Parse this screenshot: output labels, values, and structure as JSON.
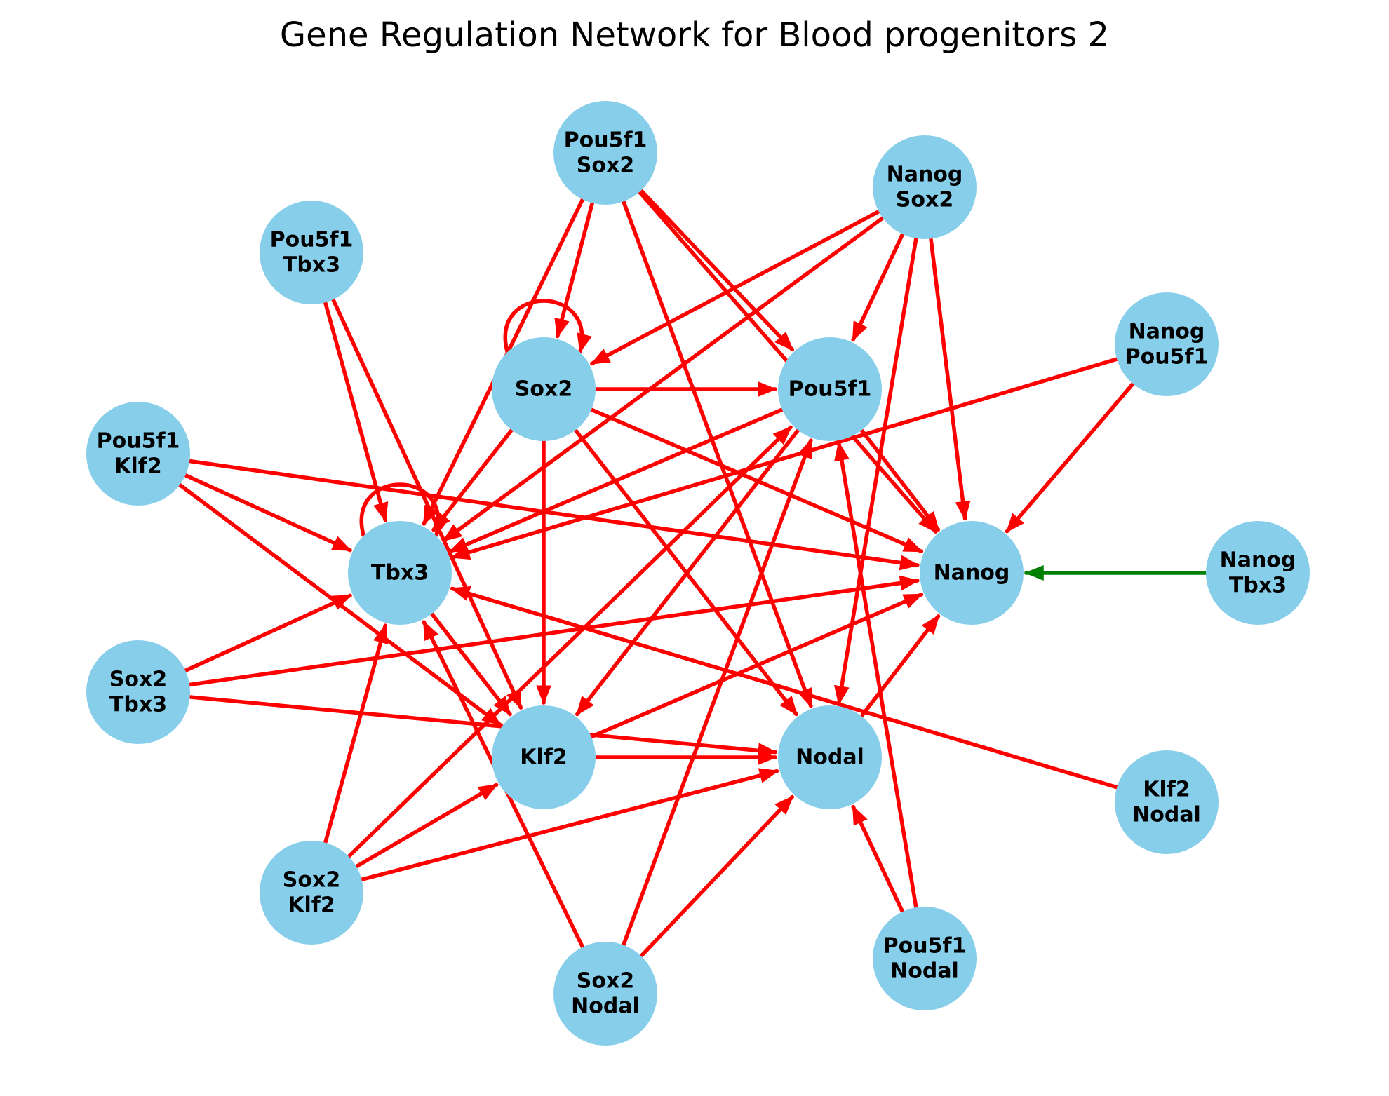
{
  "title": "Gene Regulation Network for Blood progenitors 2",
  "colors": {
    "node_fill": "#87CEEB",
    "activation_edge": "#FF0000",
    "inhibition_edge": "#008000",
    "background": "#FFFFFF"
  },
  "nodes": [
    {
      "id": "Sox2",
      "lines": [
        "Sox2"
      ]
    },
    {
      "id": "Pou5f1",
      "lines": [
        "Pou5f1"
      ]
    },
    {
      "id": "Tbx3",
      "lines": [
        "Tbx3"
      ]
    },
    {
      "id": "Nanog",
      "lines": [
        "Nanog"
      ]
    },
    {
      "id": "Klf2",
      "lines": [
        "Klf2"
      ]
    },
    {
      "id": "Nodal",
      "lines": [
        "Nodal"
      ]
    },
    {
      "id": "Pou5f1_Sox2",
      "lines": [
        "Pou5f1",
        "Sox2"
      ]
    },
    {
      "id": "Nanog_Sox2",
      "lines": [
        "Nanog",
        "Sox2"
      ]
    },
    {
      "id": "Pou5f1_Tbx3",
      "lines": [
        "Pou5f1",
        "Tbx3"
      ]
    },
    {
      "id": "Nanog_Pou5f1",
      "lines": [
        "Nanog",
        "Pou5f1"
      ]
    },
    {
      "id": "Pou5f1_Klf2",
      "lines": [
        "Pou5f1",
        "Klf2"
      ]
    },
    {
      "id": "Nanog_Tbx3",
      "lines": [
        "Nanog",
        "Tbx3"
      ]
    },
    {
      "id": "Sox2_Tbx3",
      "lines": [
        "Sox2",
        "Tbx3"
      ]
    },
    {
      "id": "Klf2_Nodal",
      "lines": [
        "Klf2",
        "Nodal"
      ]
    },
    {
      "id": "Sox2_Klf2",
      "lines": [
        "Sox2",
        "Klf2"
      ]
    },
    {
      "id": "Pou5f1_Nodal",
      "lines": [
        "Pou5f1",
        "Nodal"
      ]
    },
    {
      "id": "Sox2_Nodal",
      "lines": [
        "Sox2",
        "Nodal"
      ]
    }
  ],
  "edges": [
    {
      "source": "Sox2",
      "target": "Sox2",
      "type": "activation"
    },
    {
      "source": "Sox2",
      "target": "Pou5f1",
      "type": "activation"
    },
    {
      "source": "Sox2",
      "target": "Tbx3",
      "type": "activation"
    },
    {
      "source": "Sox2",
      "target": "Nanog",
      "type": "activation"
    },
    {
      "source": "Sox2",
      "target": "Klf2",
      "type": "activation"
    },
    {
      "source": "Sox2",
      "target": "Nodal",
      "type": "activation"
    },
    {
      "source": "Pou5f1",
      "target": "Tbx3",
      "type": "activation"
    },
    {
      "source": "Pou5f1",
      "target": "Nanog",
      "type": "activation"
    },
    {
      "source": "Pou5f1",
      "target": "Klf2",
      "type": "activation"
    },
    {
      "source": "Tbx3",
      "target": "Tbx3",
      "type": "activation"
    },
    {
      "source": "Tbx3",
      "target": "Klf2",
      "type": "activation"
    },
    {
      "source": "Klf2",
      "target": "Nodal",
      "type": "activation"
    },
    {
      "source": "Klf2",
      "target": "Nanog",
      "type": "activation"
    },
    {
      "source": "Nodal",
      "target": "Nanog",
      "type": "activation"
    },
    {
      "source": "Pou5f1_Sox2",
      "target": "Sox2",
      "type": "activation"
    },
    {
      "source": "Pou5f1_Sox2",
      "target": "Tbx3",
      "type": "activation"
    },
    {
      "source": "Pou5f1_Sox2",
      "target": "Pou5f1",
      "type": "activation"
    },
    {
      "source": "Pou5f1_Sox2",
      "target": "Nanog",
      "type": "activation"
    },
    {
      "source": "Pou5f1_Sox2",
      "target": "Nodal",
      "type": "activation"
    },
    {
      "source": "Nanog_Sox2",
      "target": "Sox2",
      "type": "activation"
    },
    {
      "source": "Nanog_Sox2",
      "target": "Tbx3",
      "type": "activation"
    },
    {
      "source": "Nanog_Sox2",
      "target": "Pou5f1",
      "type": "activation"
    },
    {
      "source": "Nanog_Sox2",
      "target": "Nanog",
      "type": "activation"
    },
    {
      "source": "Nanog_Sox2",
      "target": "Nodal",
      "type": "activation"
    },
    {
      "source": "Pou5f1_Tbx3",
      "target": "Tbx3",
      "type": "activation"
    },
    {
      "source": "Pou5f1_Tbx3",
      "target": "Klf2",
      "type": "activation"
    },
    {
      "source": "Nanog_Pou5f1",
      "target": "Nanog",
      "type": "activation"
    },
    {
      "source": "Nanog_Pou5f1",
      "target": "Tbx3",
      "type": "activation"
    },
    {
      "source": "Pou5f1_Klf2",
      "target": "Tbx3",
      "type": "activation"
    },
    {
      "source": "Pou5f1_Klf2",
      "target": "Nanog",
      "type": "activation"
    },
    {
      "source": "Pou5f1_Klf2",
      "target": "Klf2",
      "type": "activation"
    },
    {
      "source": "Nanog_Tbx3",
      "target": "Nanog",
      "type": "inhibition"
    },
    {
      "source": "Sox2_Tbx3",
      "target": "Tbx3",
      "type": "activation"
    },
    {
      "source": "Sox2_Tbx3",
      "target": "Nanog",
      "type": "activation"
    },
    {
      "source": "Sox2_Tbx3",
      "target": "Nodal",
      "type": "activation"
    },
    {
      "source": "Klf2_Nodal",
      "target": "Tbx3",
      "type": "activation"
    },
    {
      "source": "Sox2_Klf2",
      "target": "Tbx3",
      "type": "activation"
    },
    {
      "source": "Sox2_Klf2",
      "target": "Klf2",
      "type": "activation"
    },
    {
      "source": "Sox2_Klf2",
      "target": "Nodal",
      "type": "activation"
    },
    {
      "source": "Sox2_Klf2",
      "target": "Pou5f1",
      "type": "activation"
    },
    {
      "source": "Pou5f1_Nodal",
      "target": "Nodal",
      "type": "activation"
    },
    {
      "source": "Pou5f1_Nodal",
      "target": "Pou5f1",
      "type": "activation"
    },
    {
      "source": "Sox2_Nodal",
      "target": "Tbx3",
      "type": "activation"
    },
    {
      "source": "Sox2_Nodal",
      "target": "Nodal",
      "type": "activation"
    },
    {
      "source": "Sox2_Nodal",
      "target": "Pou5f1",
      "type": "activation"
    }
  ]
}
